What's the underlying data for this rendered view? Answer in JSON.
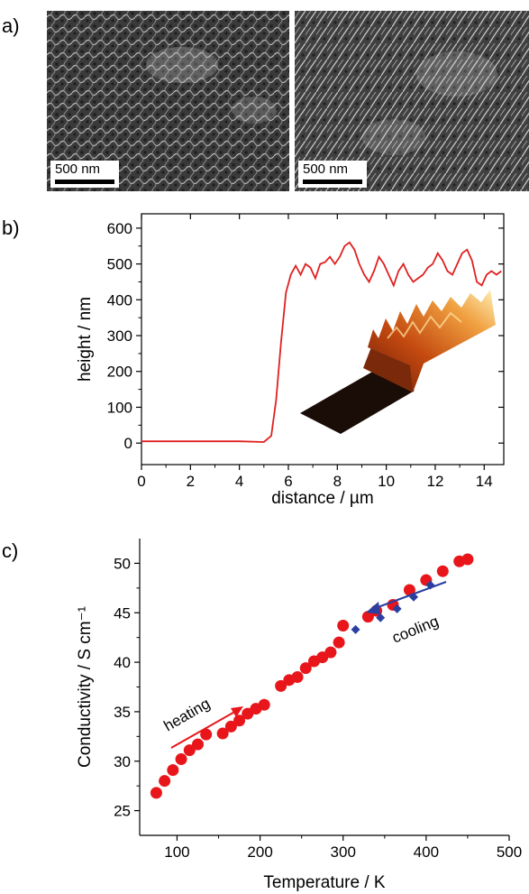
{
  "panels": {
    "a": {
      "label": "a)",
      "scalebar_left": "500 nm",
      "scalebar_right": "500 nm"
    },
    "b": {
      "label": "b)"
    },
    "c": {
      "label": "c)"
    }
  },
  "chart_data": [
    {
      "panel": "b",
      "type": "line",
      "xlabel": "distance / µm",
      "ylabel": "height / nm",
      "xlim": [
        0,
        14.8
      ],
      "ylim": [
        -60,
        640
      ],
      "xticks": [
        0,
        2,
        4,
        6,
        8,
        10,
        12,
        14
      ],
      "yticks": [
        0,
        100,
        200,
        300,
        400,
        500,
        600
      ],
      "grid": false,
      "color": "#e02020",
      "x": [
        0,
        1,
        2,
        3,
        4,
        5,
        5.3,
        5.5,
        5.7,
        5.9,
        6.1,
        6.3,
        6.5,
        6.7,
        6.9,
        7.1,
        7.3,
        7.5,
        7.7,
        7.9,
        8.1,
        8.3,
        8.5,
        8.7,
        8.9,
        9.1,
        9.3,
        9.5,
        9.7,
        9.9,
        10.1,
        10.3,
        10.5,
        10.7,
        10.9,
        11.1,
        11.3,
        11.5,
        11.7,
        11.9,
        12.1,
        12.3,
        12.5,
        12.7,
        12.9,
        13.1,
        13.3,
        13.5,
        13.7,
        13.9,
        14.1,
        14.3,
        14.5,
        14.7
      ],
      "y": [
        5,
        5,
        5,
        5,
        5,
        3,
        20,
        120,
        280,
        420,
        470,
        495,
        470,
        500,
        490,
        460,
        500,
        505,
        520,
        500,
        520,
        550,
        560,
        540,
        500,
        470,
        450,
        480,
        520,
        500,
        470,
        440,
        480,
        500,
        470,
        450,
        460,
        470,
        490,
        500,
        530,
        510,
        480,
        470,
        500,
        530,
        540,
        510,
        450,
        440,
        470,
        480,
        470,
        480
      ]
    },
    {
      "panel": "c",
      "type": "scatter",
      "xlabel": "Temperature / K",
      "ylabel": "Conductivity / S cm⁻¹",
      "xlim": [
        55,
        500
      ],
      "ylim": [
        22.5,
        52.5
      ],
      "xticks": [
        100,
        200,
        300,
        400,
        500
      ],
      "yticks": [
        25,
        30,
        35,
        40,
        45,
        50
      ],
      "grid": false,
      "series": [
        {
          "color": "#e8161b",
          "marker": "circle",
          "x": [
            75,
            85,
            95,
            105,
            115,
            125,
            135,
            155,
            165,
            175,
            185,
            195,
            205,
            225,
            235,
            245,
            255,
            265,
            275,
            285,
            295,
            300,
            330,
            340,
            360,
            380,
            400,
            420,
            440,
            450
          ],
          "y": [
            26.8,
            28.0,
            29.1,
            30.2,
            31.1,
            31.7,
            32.7,
            32.8,
            33.5,
            34.1,
            34.8,
            35.3,
            35.7,
            37.6,
            38.2,
            38.5,
            39.4,
            40.1,
            40.5,
            41.0,
            42.0,
            43.7,
            44.6,
            45.2,
            45.8,
            47.3,
            48.3,
            49.2,
            50.2,
            50.4
          ]
        },
        {
          "color": "#2a3fa0",
          "marker": "diamond",
          "x": [
            315,
            345,
            365,
            385,
            405
          ],
          "y": [
            43.3,
            44.5,
            45.4,
            46.6,
            47.8
          ]
        }
      ],
      "annotations": [
        {
          "text": "heating",
          "color": "#000000"
        },
        {
          "text": "cooling",
          "color": "#000000"
        }
      ]
    }
  ]
}
